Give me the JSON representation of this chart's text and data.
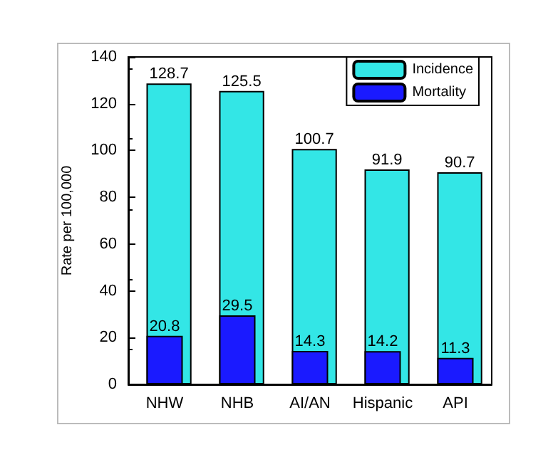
{
  "chart_data": {
    "type": "bar",
    "ylabel": "Rate per 100,000",
    "categories": [
      "NHW",
      "NHB",
      "AI/AN",
      "Hispanic",
      "API"
    ],
    "series": [
      {
        "name": "Incidence",
        "color": "#33e6e6",
        "values": [
          128.7,
          125.5,
          100.7,
          91.9,
          90.7
        ]
      },
      {
        "name": "Mortality",
        "color": "#1a1aff",
        "values": [
          20.8,
          29.5,
          14.3,
          14.2,
          11.3
        ]
      }
    ],
    "ylim": [
      0,
      140
    ],
    "yticks": [
      0,
      20,
      40,
      60,
      80,
      100,
      120,
      140
    ],
    "grid": false,
    "legend": "top right",
    "data_labels": true
  }
}
